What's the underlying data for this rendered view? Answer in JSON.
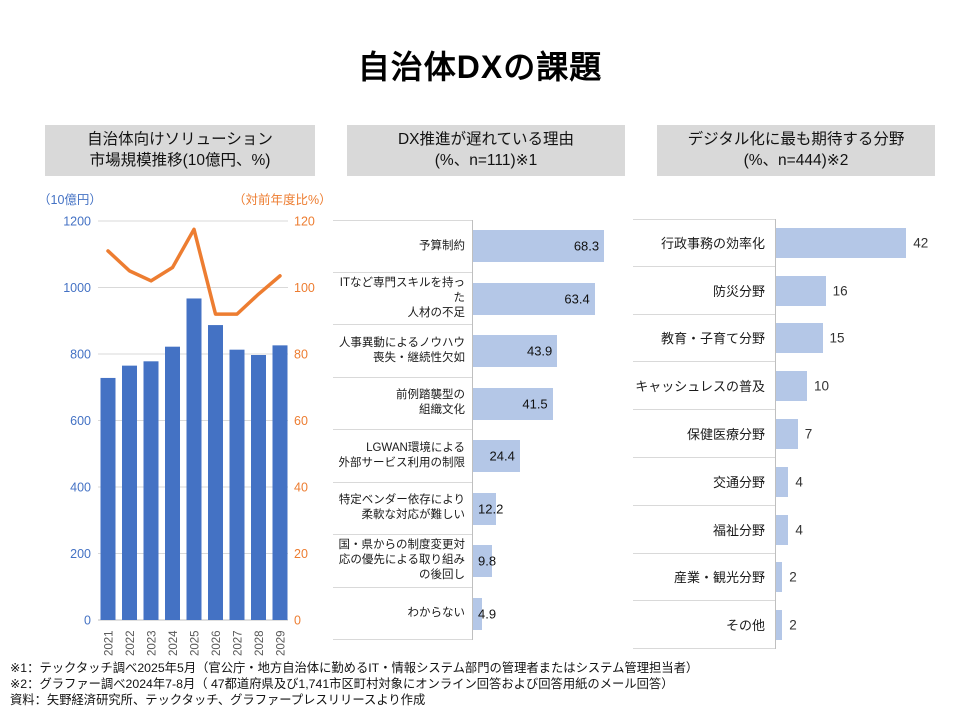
{
  "slide": {
    "title": "自治体DXの課題",
    "footnotes": [
      "※1：テックタッチ調べ2025年5月（官公庁・地方自治体に勤めるIT・情報システム部門の管理者またはシステム管理担当者）",
      "※2：グラファー調べ2024年7-8月（ 47都道府県及び1,741市区町村対象にオンライン回答および回答用紙のメール回答）",
      "資料：矢野経済研究所、テックタッチ、グラファープレスリリースより作成"
    ]
  },
  "colors": {
    "bar_blue": "#4472C4",
    "line_orange": "#ED7D31",
    "bar_light_blue": "#B4C7E7",
    "header_bg": "#D9D9D9",
    "gridline": "#D9D9D9",
    "axis_line": "#BFBFBF",
    "year_tick_gray": "#595959"
  },
  "chart_data": [
    {
      "id": "market",
      "type": "bar",
      "subtype": "bar+line-combo",
      "header": "自治体向けソリューション\n市場規模推移(10億円、%)",
      "left_axis_label": "（10億円）",
      "right_axis_label": "（対前年度比%）",
      "categories": [
        "2021",
        "2022",
        "2023",
        "2024",
        "2025",
        "2026",
        "2027",
        "2028",
        "2029"
      ],
      "series": [
        {
          "name": "10億円",
          "type": "bar",
          "values": [
            728,
            765,
            778,
            822,
            967,
            887,
            813,
            797,
            826
          ]
        },
        {
          "name": "対前年度比%",
          "type": "line",
          "values": [
            111,
            105,
            102,
            106,
            117.5,
            92,
            92,
            98,
            103.5
          ]
        }
      ],
      "left_ylim": [
        0,
        1200
      ],
      "left_ticks": [
        0,
        200,
        400,
        600,
        800,
        1000,
        1200
      ],
      "right_ylim": [
        0,
        120
      ],
      "right_ticks": [
        0,
        20,
        40,
        60,
        80,
        100,
        120
      ],
      "grid": true,
      "legend": "none"
    },
    {
      "id": "reasons",
      "type": "bar",
      "orientation": "horizontal",
      "header": "DX推進が遅れている理由\n(%、n=111)※1",
      "categories": [
        "予算制約",
        "ITなど専門スキルを持った\n人材の不足",
        "人事異動によるノウハウ\n喪失・継続性欠如",
        "前例踏襲型の\n組織文化",
        "LGWAN環境による\n外部サービス利用の制限",
        "特定ベンダー依存により\n柔軟な対応が難しい",
        "国・県からの制度変更対\n応の優先による取り組み\nの後回し",
        "わからない"
      ],
      "values": [
        68.3,
        63.4,
        43.9,
        41.5,
        24.4,
        12.2,
        9.8,
        4.9
      ],
      "xlabel": "%",
      "data_labels": true,
      "legend": "none"
    },
    {
      "id": "expectations",
      "type": "bar",
      "orientation": "horizontal",
      "header": "デジタル化に最も期待する分野\n(%、n=444)※2",
      "categories": [
        "行政事務の効率化",
        "防災分野",
        "教育・子育て分野",
        "キャッシュレスの普及",
        "保健医療分野",
        "交通分野",
        "福祉分野",
        "産業・観光分野",
        "その他"
      ],
      "values": [
        42,
        16,
        15,
        10,
        7,
        4,
        4,
        2,
        2
      ],
      "xlabel": "%",
      "data_labels": true,
      "legend": "none"
    }
  ]
}
